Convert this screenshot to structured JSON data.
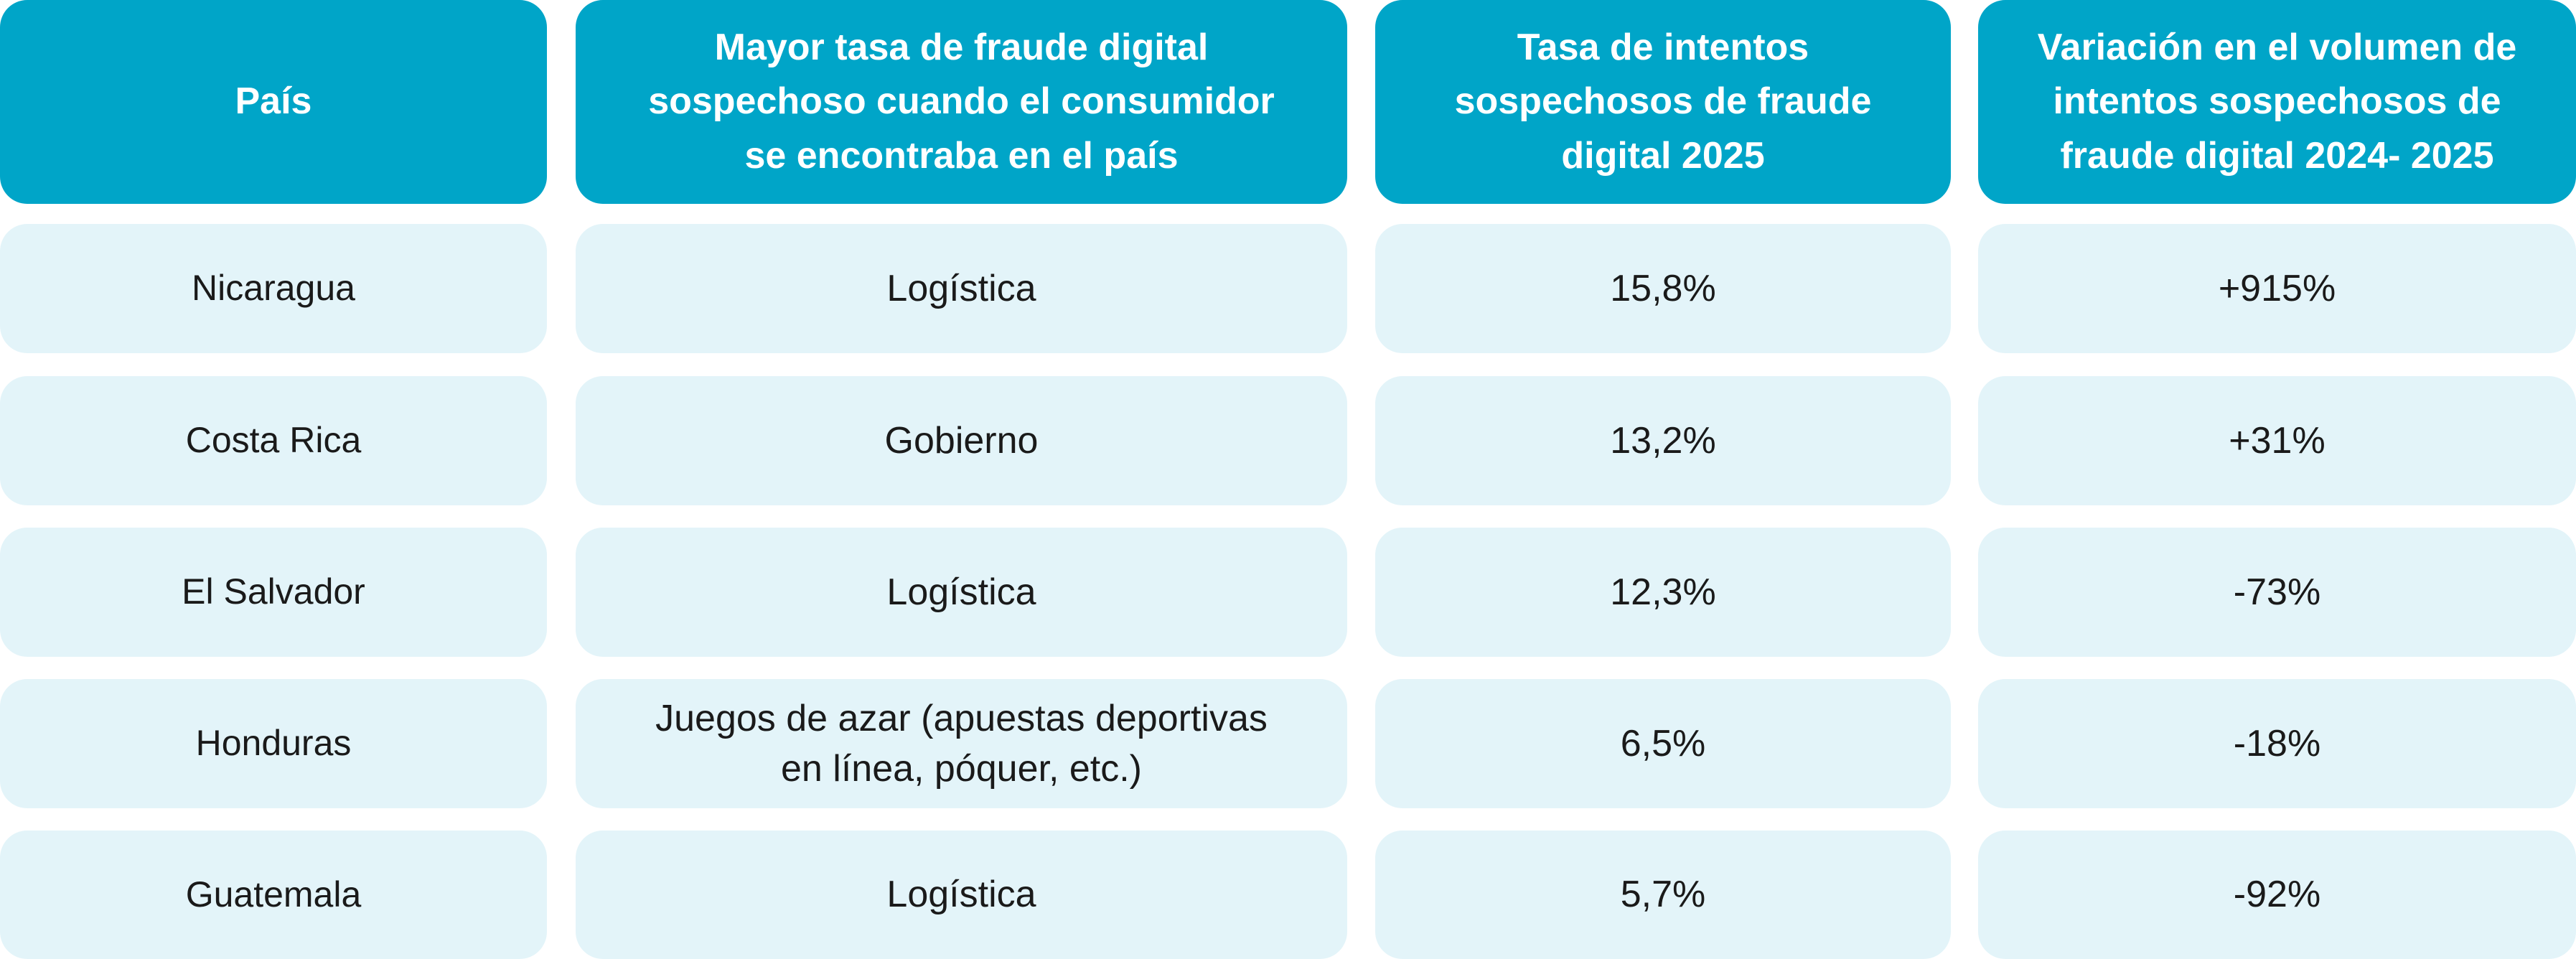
{
  "headers": [
    "País",
    "Mayor tasa de fraude digital\nsospechoso cuando el consumidor\nse encontraba en el país",
    "Tasa de intentos\nsospechosos de fraude\ndigital 2025",
    "Variación en el volumen de\nintentos sospechosos de\nfraude digital 2024- 2025"
  ],
  "rows": [
    {
      "country": "Nicaragua",
      "sector": "Logística",
      "rate": "15,8%",
      "variation": "+915%"
    },
    {
      "country": "Costa Rica",
      "sector": "Gobierno",
      "rate": "13,2%",
      "variation": "+31%"
    },
    {
      "country": "El Salvador",
      "sector": "Logística",
      "rate": "12,3%",
      "variation": "-73%"
    },
    {
      "country": "Honduras",
      "sector": "Juegos de azar (apuestas deportivas\nen línea, póquer, etc.)",
      "rate": "6,5%",
      "variation": "-18%"
    },
    {
      "country": "Guatemala",
      "sector": "Logística",
      "rate": "5,7%",
      "variation": "-92%"
    }
  ],
  "colors": {
    "header_bg": "#00a5c8",
    "header_text": "#ffffff",
    "cell_bg": "#e3f4f9",
    "cell_text": "#1a1a1a"
  }
}
